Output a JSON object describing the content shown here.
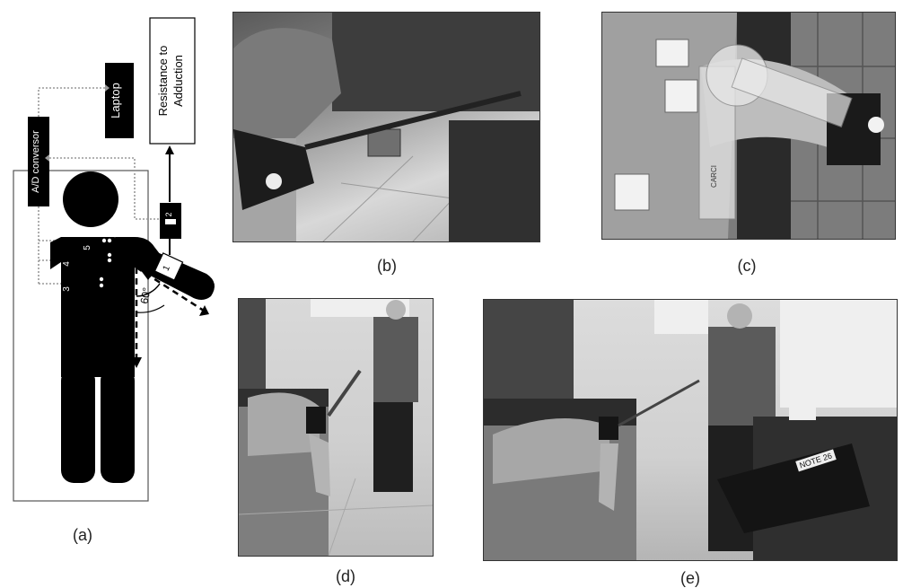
{
  "diagram": {
    "laptop_label": "Laptop",
    "resistance_label_line1": "Resistance to",
    "resistance_label_line2": "Adduction",
    "ad_label": "A/D conversor",
    "angle_label": "60°",
    "marker_1": "1",
    "marker_2": "2",
    "marker_3": "3",
    "marker_4": "4",
    "marker_5": "5"
  },
  "photo_c": {
    "goniometer_brand": "CARCI"
  },
  "photo_e": {
    "laptop_sticker": "NOTE 26"
  },
  "captions": {
    "a": "(a)",
    "b": "(b)",
    "c": "(c)",
    "d": "(d)",
    "e": "(e)"
  }
}
